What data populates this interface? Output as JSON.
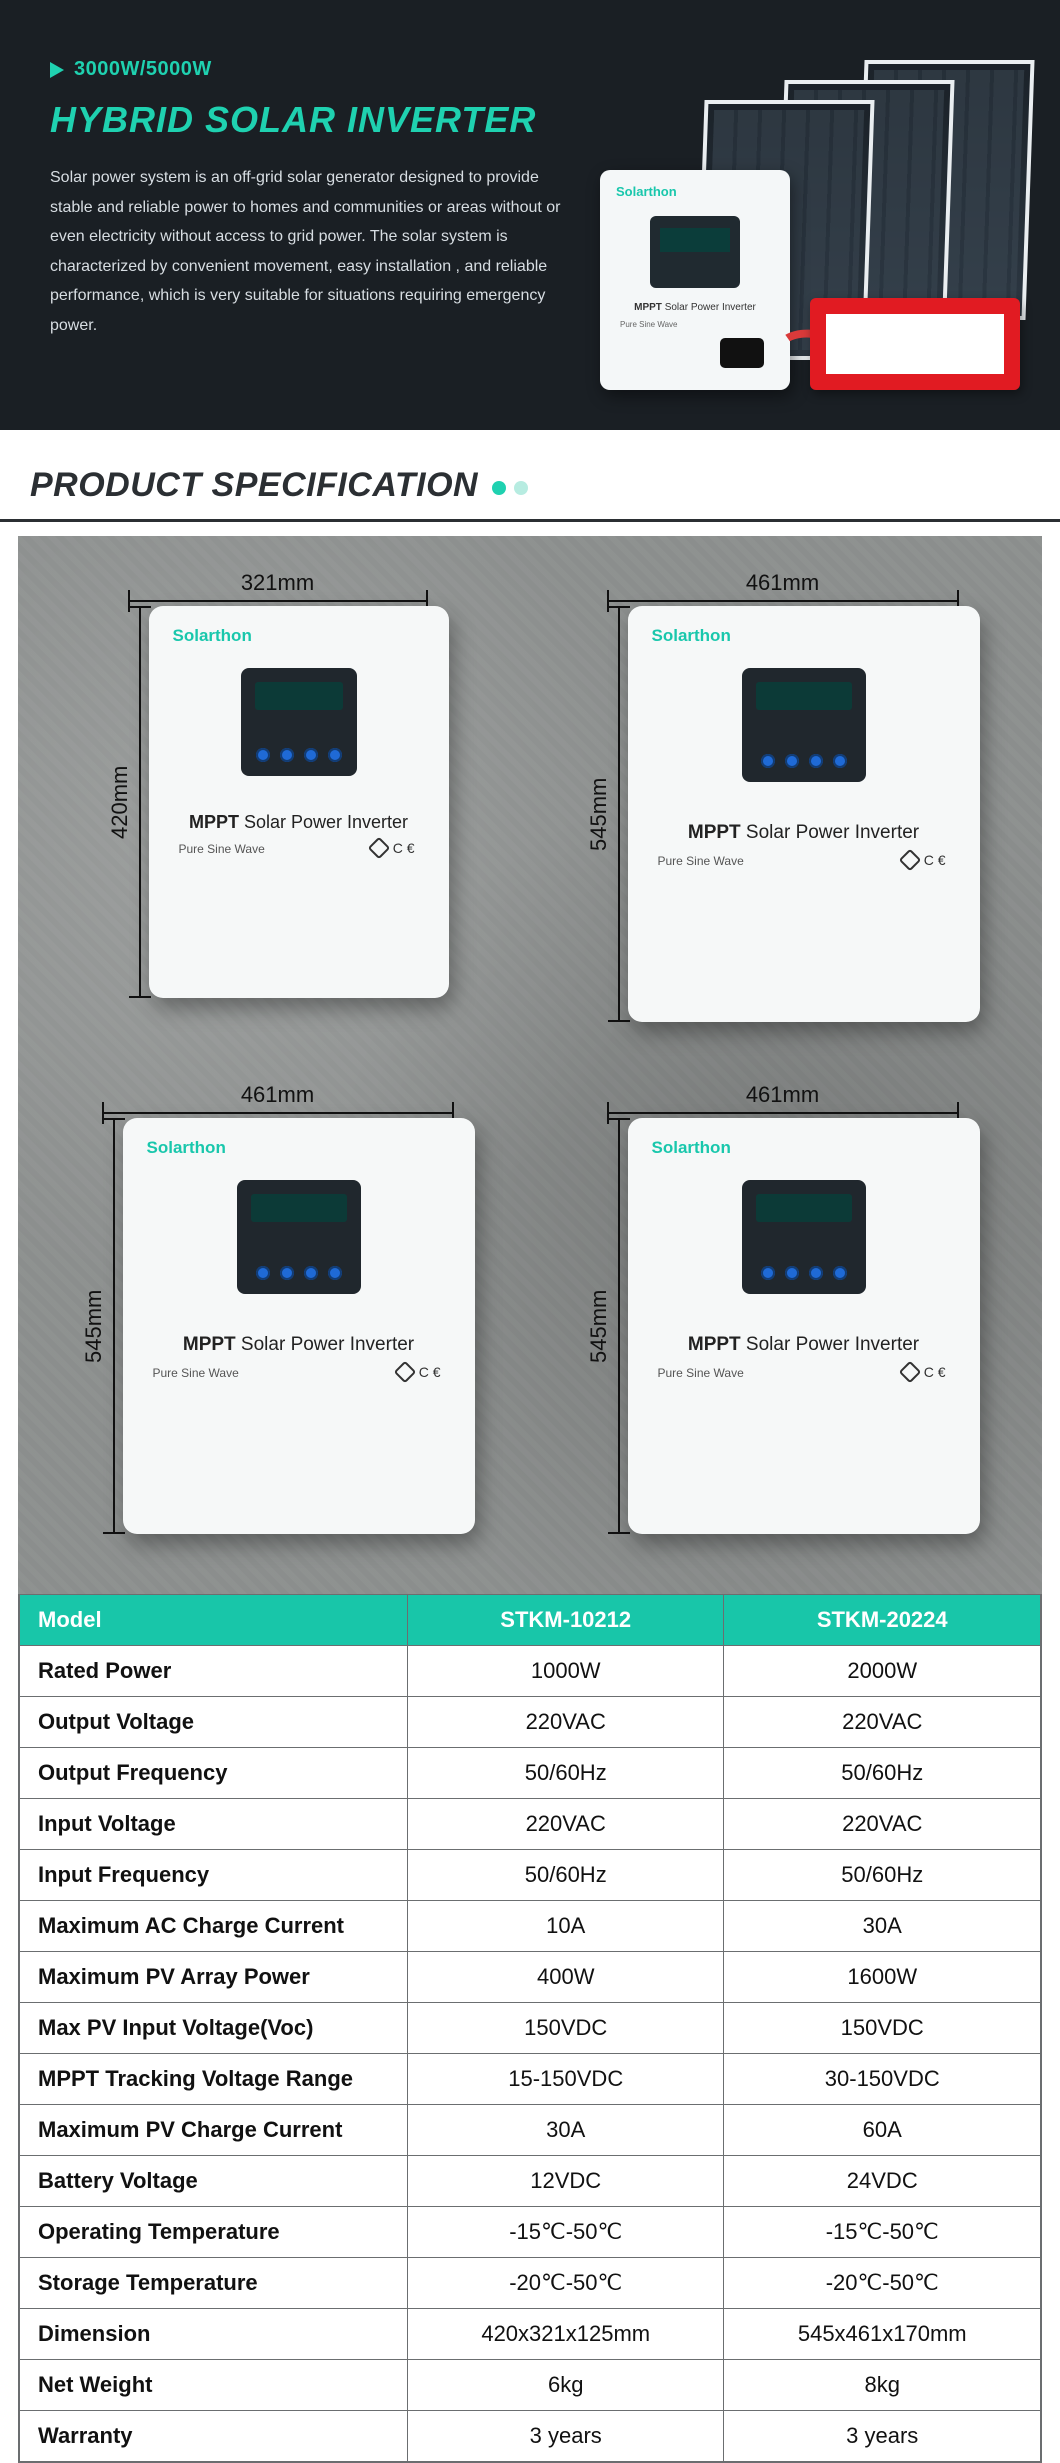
{
  "hero": {
    "tag": "3000W/5000W",
    "title": "HYBRID SOLAR INVERTER",
    "desc": "Solar power system is an off-grid solar generator designed to provide stable and reliable power to homes and communities or areas without or even electricity without access to grid power. The solar system is characterized by convenient movement, easy installation , and reliable performance, which is very suitable for situations requiring emergency power.",
    "colors": {
      "accent": "#1fd1b0",
      "bg": "#1a1f24"
    }
  },
  "section_title": "PRODUCT SPECIFICATION",
  "products": [
    {
      "width": "321mm",
      "height": "420mm",
      "brand": "Solarthon",
      "label_bold": "MPPT",
      "label_rest": " Solar Power Inverter",
      "sub": "Pure Sine Wave",
      "size_class": "sz-a"
    },
    {
      "width": "461mm",
      "height": "545mm",
      "brand": "Solarthon",
      "label_bold": "MPPT",
      "label_rest": " Solar Power Inverter",
      "sub": "Pure Sine Wave",
      "size_class": "sz-b"
    },
    {
      "width": "461mm",
      "height": "545mm",
      "brand": "Solarthon",
      "label_bold": "MPPT",
      "label_rest": " Solar Power Inverter",
      "sub": "Pure Sine Wave",
      "size_class": "sz-b"
    },
    {
      "width": "461mm",
      "height": "545mm",
      "brand": "Solarthon",
      "label_bold": "MPPT",
      "label_rest": " Solar Power Inverter",
      "sub": "Pure Sine Wave",
      "size_class": "sz-b"
    }
  ],
  "spec": {
    "head": [
      "Model",
      "STKM-10212",
      "STKM-20224"
    ],
    "rows": [
      [
        "Rated Power",
        "1000W",
        "2000W"
      ],
      [
        "Output Voltage",
        "220VAC",
        "220VAC"
      ],
      [
        "Output Frequency",
        "50/60Hz",
        "50/60Hz"
      ],
      [
        "Input Voltage",
        "220VAC",
        "220VAC"
      ],
      [
        "Input Frequency",
        "50/60Hz",
        "50/60Hz"
      ],
      [
        "Maximum AC Charge Current",
        "10A",
        "30A"
      ],
      [
        "Maximum PV Array Power",
        "400W",
        "1600W"
      ],
      [
        "Max PV Input Voltage(Voc)",
        "150VDC",
        "150VDC"
      ],
      [
        "MPPT Tracking Voltage Range",
        "15-150VDC",
        "30-150VDC"
      ],
      [
        "Maximum PV Charge Current",
        "30A",
        "60A"
      ],
      [
        "Battery Voltage",
        "12VDC",
        "24VDC"
      ],
      [
        "Operating Temperature",
        "-15℃-50℃",
        "-15℃-50℃"
      ],
      [
        "Storage Temperature",
        "-20℃-50℃",
        "-20℃-50℃"
      ],
      [
        "Dimension",
        "420x321x125mm",
        "545x461x170mm"
      ],
      [
        "Net Weight",
        "6kg",
        "8kg"
      ],
      [
        "Warranty",
        "3 years",
        "3 years"
      ]
    ]
  }
}
